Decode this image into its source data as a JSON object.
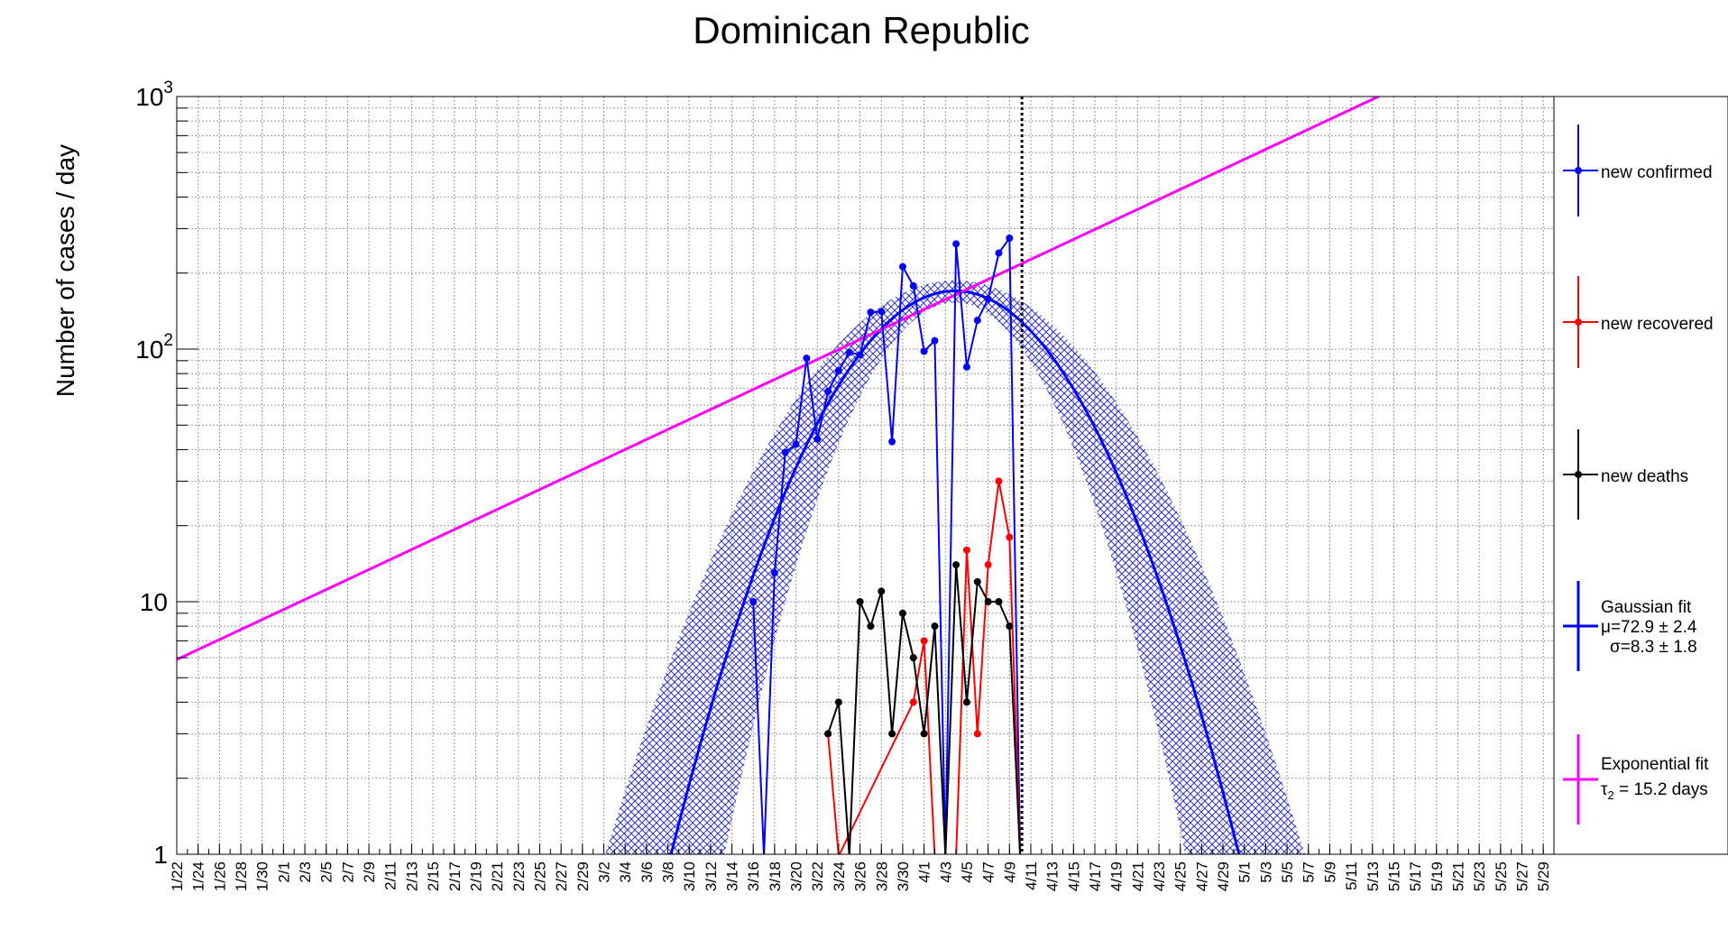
{
  "chart_data": {
    "type": "line",
    "title": "Dominican Republic",
    "ylabel": "Number of cases / day",
    "xlabel": "",
    "yscale": "log",
    "ylim": [
      1,
      1000
    ],
    "y_ticks": [
      {
        "value": 1,
        "label": "1"
      },
      {
        "value": 10,
        "label": "10"
      },
      {
        "value": 100,
        "label": "10",
        "exp": "2"
      },
      {
        "value": 1000,
        "label": "10",
        "exp": "3"
      }
    ],
    "x_range_days": [
      0,
      129
    ],
    "x_ticks": [
      "1/22",
      "1/24",
      "1/26",
      "1/28",
      "1/30",
      "2/1",
      "2/3",
      "2/5",
      "2/7",
      "2/9",
      "2/11",
      "2/13",
      "2/15",
      "2/17",
      "2/19",
      "2/21",
      "2/23",
      "2/25",
      "2/27",
      "2/29",
      "3/2",
      "3/4",
      "3/6",
      "3/8",
      "3/10",
      "3/12",
      "3/14",
      "3/16",
      "3/18",
      "3/20",
      "3/22",
      "3/24",
      "3/26",
      "3/28",
      "3/30",
      "4/1",
      "4/3",
      "4/5",
      "4/7",
      "4/9",
      "4/11",
      "4/13",
      "4/15",
      "4/17",
      "4/19",
      "4/21",
      "4/23",
      "4/25",
      "4/27",
      "4/29",
      "5/1",
      "5/3",
      "5/5",
      "5/7",
      "5/9",
      "5/11",
      "5/13",
      "5/15",
      "5/17",
      "5/19",
      "5/21",
      "5/23",
      "5/25",
      "5/27",
      "5/29"
    ],
    "grid": true,
    "current_date_marker": "4/10",
    "series": [
      {
        "name": "new confirmed",
        "color": "#0000ff",
        "points": [
          {
            "x": "3/16",
            "y": 10
          },
          {
            "x": "3/17",
            "y": 0
          },
          {
            "x": "3/18",
            "y": 13
          },
          {
            "x": "3/19",
            "y": 39
          },
          {
            "x": "3/20",
            "y": 42
          },
          {
            "x": "3/21",
            "y": 92
          },
          {
            "x": "3/22",
            "y": 44
          },
          {
            "x": "3/23",
            "y": 68
          },
          {
            "x": "3/24",
            "y": 82
          },
          {
            "x": "3/25",
            "y": 97
          },
          {
            "x": "3/26",
            "y": 95
          },
          {
            "x": "3/27",
            "y": 140
          },
          {
            "x": "3/28",
            "y": 141
          },
          {
            "x": "3/29",
            "y": 43
          },
          {
            "x": "3/30",
            "y": 212
          },
          {
            "x": "3/31",
            "y": 178
          },
          {
            "x": "4/1",
            "y": 98
          },
          {
            "x": "4/2",
            "y": 108
          },
          {
            "x": "4/3",
            "y": 0
          },
          {
            "x": "4/4",
            "y": 261
          },
          {
            "x": "4/5",
            "y": 85
          },
          {
            "x": "4/6",
            "y": 130
          },
          {
            "x": "4/7",
            "y": 158
          },
          {
            "x": "4/8",
            "y": 240
          },
          {
            "x": "4/9",
            "y": 275
          },
          {
            "x": "4/10",
            "y": 0
          }
        ]
      },
      {
        "name": "new recovered",
        "color": "#ff0000",
        "points": [
          {
            "x": "3/23",
            "y": 3
          },
          {
            "x": "3/24",
            "y": 0
          },
          {
            "x": "3/31",
            "y": 4
          },
          {
            "x": "4/1",
            "y": 7
          },
          {
            "x": "4/2",
            "y": 0
          },
          {
            "x": "4/4",
            "y": 0
          },
          {
            "x": "4/5",
            "y": 16
          },
          {
            "x": "4/6",
            "y": 3
          },
          {
            "x": "4/7",
            "y": 14
          },
          {
            "x": "4/8",
            "y": 30
          },
          {
            "x": "4/9",
            "y": 18
          },
          {
            "x": "4/10",
            "y": 0
          }
        ]
      },
      {
        "name": "new deaths",
        "color": "#000000",
        "points": [
          {
            "x": "3/23",
            "y": 3
          },
          {
            "x": "3/24",
            "y": 4
          },
          {
            "x": "3/25",
            "y": 0
          },
          {
            "x": "3/26",
            "y": 10
          },
          {
            "x": "3/27",
            "y": 8
          },
          {
            "x": "3/28",
            "y": 11
          },
          {
            "x": "3/29",
            "y": 3
          },
          {
            "x": "3/30",
            "y": 9
          },
          {
            "x": "3/31",
            "y": 6
          },
          {
            "x": "4/1",
            "y": 3
          },
          {
            "x": "4/2",
            "y": 8
          },
          {
            "x": "4/3",
            "y": 0
          },
          {
            "x": "4/4",
            "y": 14
          },
          {
            "x": "4/5",
            "y": 4
          },
          {
            "x": "4/6",
            "y": 12
          },
          {
            "x": "4/7",
            "y": 10
          },
          {
            "x": "4/8",
            "y": 10
          },
          {
            "x": "4/9",
            "y": 8
          },
          {
            "x": "4/10",
            "y": 0
          }
        ]
      }
    ],
    "fits": {
      "gaussian": {
        "color": "#0000ff",
        "band_color": "#3333cc",
        "amplitude": 170,
        "mu": 72.9,
        "sigma": 8.3,
        "legend_title": "Gaussian fit",
        "legend_line2": "μ=72.9 ± 2.4",
        "legend_line3": "σ=8.3 ± 1.8"
      },
      "exponential": {
        "color": "#ff00ff",
        "y_at_x0": 5.9,
        "tau2_days": 15.2,
        "legend_title": "Exponential fit",
        "legend_line2": "τ",
        "legend_sub": "2",
        "legend_line2_rest": " = 15.2 days"
      }
    },
    "legend": {
      "placement": "right",
      "entries": [
        "new confirmed",
        "new recovered",
        "new deaths"
      ]
    }
  }
}
